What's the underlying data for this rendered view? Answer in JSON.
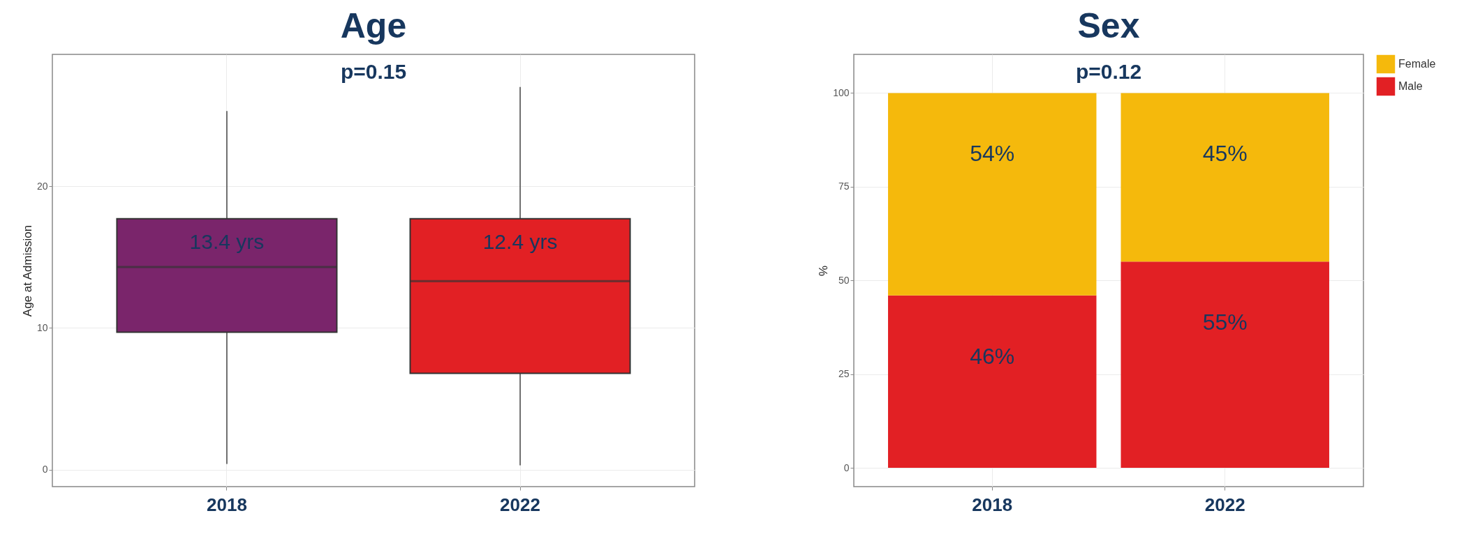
{
  "chart_data": [
    {
      "type": "box",
      "title": "Age",
      "ylabel": "Age at Admission",
      "categories": [
        "2018",
        "2022"
      ],
      "boxes": [
        {
          "low": 0.4,
          "q1": 9.7,
          "median": 14.3,
          "q3": 17.7,
          "high": 25.3
        },
        {
          "low": 0.3,
          "q1": 6.8,
          "median": 13.3,
          "q3": 17.7,
          "high": 27.0
        }
      ],
      "colors": [
        "#7a256b",
        "#e22024"
      ],
      "ylim": [
        -1.2,
        29.3
      ],
      "yticks": [
        0,
        10,
        20
      ],
      "grid": true,
      "annotations": [
        "p=0.15",
        "13.4 yrs",
        "12.4 yrs"
      ]
    },
    {
      "type": "bar",
      "title": "Sex",
      "ylabel": "%",
      "categories": [
        "2018",
        "2022"
      ],
      "stacked": true,
      "series": [
        {
          "name": "Male",
          "color": "#e22024",
          "values": [
            46,
            55
          ],
          "value_labels": [
            "46%",
            "55%"
          ]
        },
        {
          "name": "Female",
          "color": "#f5b90c",
          "values": [
            54,
            45
          ],
          "value_labels": [
            "54%",
            "45%"
          ]
        }
      ],
      "ylim": [
        -5,
        110.3
      ],
      "yticks": [
        0,
        25,
        50,
        75,
        100
      ],
      "grid": true,
      "legend": "right",
      "annotations": [
        "p=0.12"
      ]
    }
  ]
}
